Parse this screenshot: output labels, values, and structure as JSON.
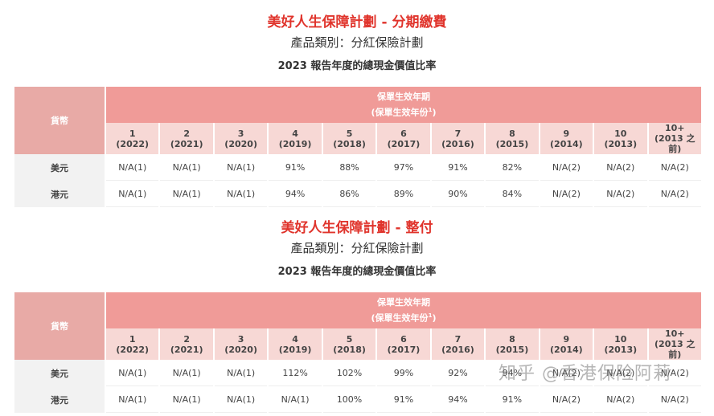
{
  "sections": [
    {
      "title": "美好人生保障計劃 - 分期繳費",
      "category": "產品類別：分紅保險計劃",
      "report": "2023 報告年度的總現金價值比率",
      "table": {
        "currency_header": "貨幣",
        "period_header_1": "保單生效年期",
        "period_header_2": "(保單生效年份",
        "period_header_sup": "1",
        "period_header_close": ")",
        "years": [
          {
            "n": "1",
            "y": "(2022)"
          },
          {
            "n": "2",
            "y": "(2021)"
          },
          {
            "n": "3",
            "y": "(2020)"
          },
          {
            "n": "4",
            "y": "(2019)"
          },
          {
            "n": "5",
            "y": "(2018)"
          },
          {
            "n": "6",
            "y": "(2017)"
          },
          {
            "n": "7",
            "y": "(2016)"
          },
          {
            "n": "8",
            "y": "(2015)"
          },
          {
            "n": "9",
            "y": "(2014)"
          },
          {
            "n": "10",
            "y": "(2013)"
          },
          {
            "n": "10+",
            "y": "(2013 之前)"
          }
        ],
        "rows": [
          {
            "currency": "美元",
            "values": [
              "N/A(1)",
              "N/A(1)",
              "N/A(1)",
              "91%",
              "88%",
              "97%",
              "91%",
              "82%",
              "N/A(2)",
              "N/A(2)",
              "N/A(2)"
            ]
          },
          {
            "currency": "港元",
            "values": [
              "N/A(1)",
              "N/A(1)",
              "N/A(1)",
              "94%",
              "86%",
              "89%",
              "90%",
              "84%",
              "N/A(2)",
              "N/A(2)",
              "N/A(2)"
            ]
          }
        ]
      }
    },
    {
      "title": "美好人生保障計劃 - 整付",
      "category": "產品類別：分紅保險計劃",
      "report": "2023 報告年度的總現金價值比率",
      "table": {
        "currency_header": "貨幣",
        "period_header_1": "保單生效年期",
        "period_header_2": "(保單生效年份",
        "period_header_sup": "1",
        "period_header_close": ")",
        "years": [
          {
            "n": "1",
            "y": "(2022)"
          },
          {
            "n": "2",
            "y": "(2021)"
          },
          {
            "n": "3",
            "y": "(2020)"
          },
          {
            "n": "4",
            "y": "(2019)"
          },
          {
            "n": "5",
            "y": "(2018)"
          },
          {
            "n": "6",
            "y": "(2017)"
          },
          {
            "n": "7",
            "y": "(2016)"
          },
          {
            "n": "8",
            "y": "(2015)"
          },
          {
            "n": "9",
            "y": "(2014)"
          },
          {
            "n": "10",
            "y": "(2013)"
          },
          {
            "n": "10+",
            "y": "(2013 之前)"
          }
        ],
        "rows": [
          {
            "currency": "美元",
            "values": [
              "N/A(1)",
              "N/A(1)",
              "N/A(1)",
              "112%",
              "102%",
              "99%",
              "92%",
              "94%",
              "N/A(2)",
              "N/A(2)",
              "N/A(2)"
            ]
          },
          {
            "currency": "港元",
            "values": [
              "N/A(1)",
              "N/A(1)",
              "N/A(1)",
              "N/A(1)",
              "100%",
              "91%",
              "94%",
              "91%",
              "N/A(2)",
              "N/A(2)",
              "N/A(2)"
            ]
          }
        ]
      }
    }
  ],
  "watermark": "知乎 @香港保险阿莉"
}
